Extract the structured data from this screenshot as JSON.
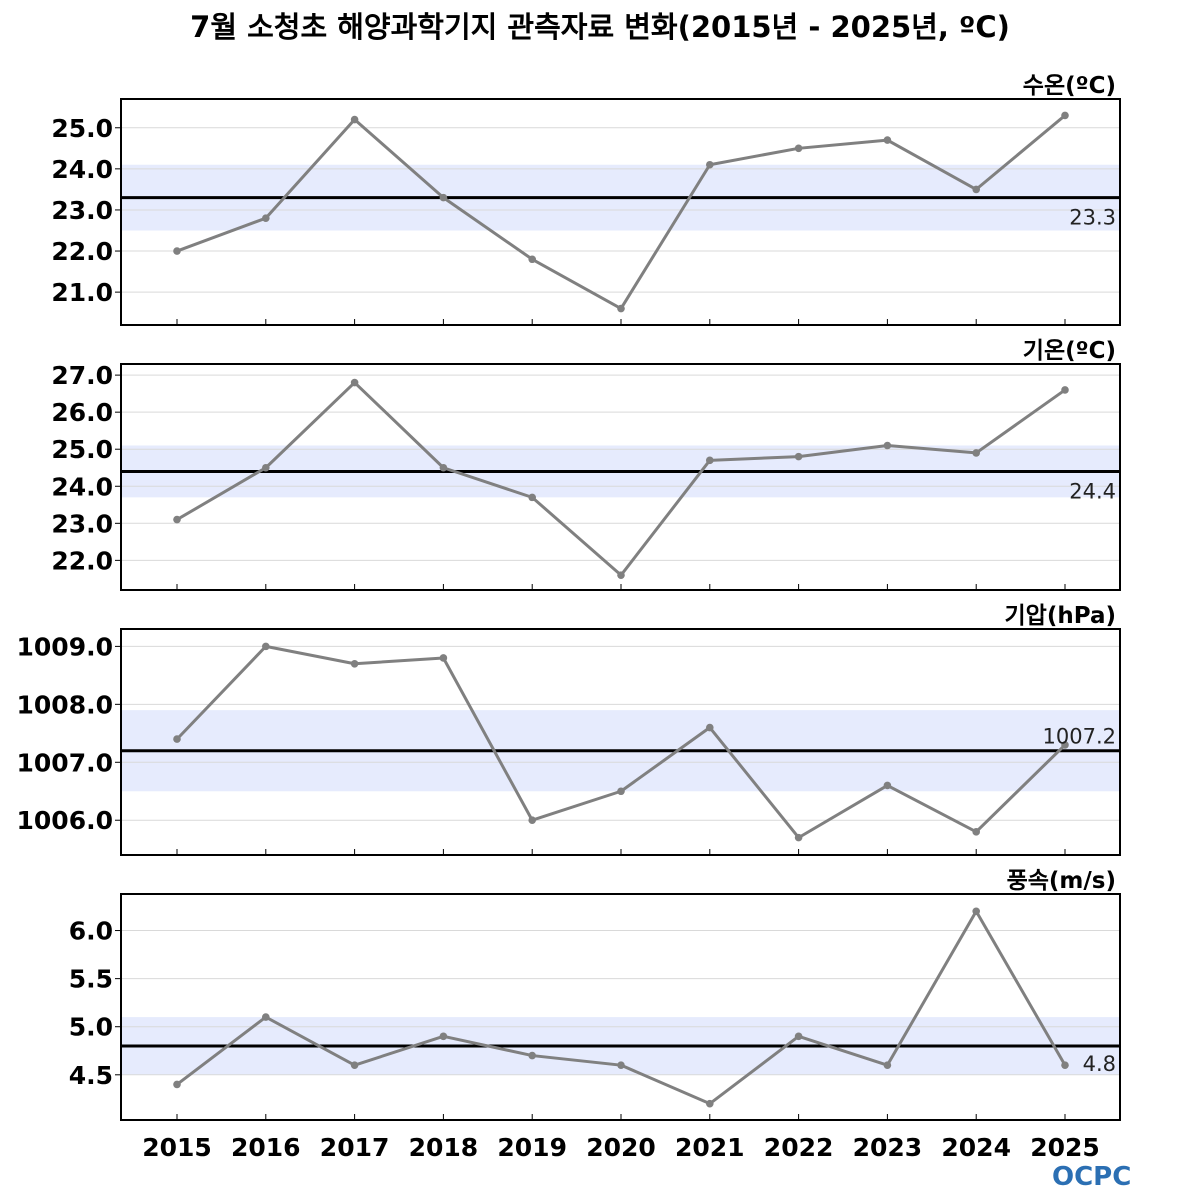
{
  "title": "7월 소청초 해양과학기지 관측자료 변화(2015년 - 2025년, ºC)",
  "logo_text": "OCPC",
  "colors": {
    "line": "#808080",
    "mean": "#000000",
    "band": "#e6ebfd",
    "grid": "#d9d9d9"
  },
  "chart_data": [
    {
      "type": "line",
      "title": "수온(ºC)",
      "x": [
        2015,
        2016,
        2017,
        2018,
        2019,
        2020,
        2021,
        2022,
        2023,
        2024,
        2025
      ],
      "values": [
        22.0,
        22.8,
        25.2,
        23.3,
        21.8,
        20.6,
        24.1,
        24.5,
        24.7,
        23.5,
        25.3
      ],
      "mean": 23.3,
      "mean_label": "23.3",
      "band": [
        22.5,
        24.1
      ],
      "ylim": [
        20.2,
        25.7
      ],
      "yticks": [
        21.0,
        22.0,
        23.0,
        24.0,
        25.0
      ],
      "ytick_labels": [
        "21.0",
        "22.0",
        "23.0",
        "24.0",
        "25.0"
      ]
    },
    {
      "type": "line",
      "title": "기온(ºC)",
      "x": [
        2015,
        2016,
        2017,
        2018,
        2019,
        2020,
        2021,
        2022,
        2023,
        2024,
        2025
      ],
      "values": [
        23.1,
        24.5,
        26.8,
        24.5,
        23.7,
        21.6,
        24.7,
        24.8,
        25.1,
        24.9,
        26.6
      ],
      "mean": 24.4,
      "mean_label": "24.4",
      "band": [
        23.7,
        25.1
      ],
      "ylim": [
        21.2,
        27.3
      ],
      "yticks": [
        22.0,
        23.0,
        24.0,
        25.0,
        26.0,
        27.0
      ],
      "ytick_labels": [
        "22.0",
        "23.0",
        "24.0",
        "25.0",
        "26.0",
        "27.0"
      ]
    },
    {
      "type": "line",
      "title": "기압(hPa)",
      "x": [
        2015,
        2016,
        2017,
        2018,
        2019,
        2020,
        2021,
        2022,
        2023,
        2024,
        2025
      ],
      "values": [
        1007.4,
        1009.0,
        1008.7,
        1008.8,
        1006.0,
        1006.5,
        1007.6,
        1005.7,
        1006.6,
        1005.8,
        1007.3
      ],
      "mean": 1007.2,
      "mean_label": "1007.2",
      "band": [
        1006.5,
        1007.9
      ],
      "ylim": [
        1005.4,
        1009.3
      ],
      "yticks": [
        1006.0,
        1007.0,
        1008.0,
        1009.0
      ],
      "ytick_labels": [
        "1006.0",
        "1007.0",
        "1008.0",
        "1009.0"
      ]
    },
    {
      "type": "line",
      "title": "풍속(m/s)",
      "x": [
        2015,
        2016,
        2017,
        2018,
        2019,
        2020,
        2021,
        2022,
        2023,
        2024,
        2025
      ],
      "values": [
        4.4,
        5.1,
        4.6,
        4.9,
        4.7,
        4.6,
        4.2,
        4.9,
        4.6,
        6.2,
        4.6
      ],
      "mean": 4.8,
      "mean_label": "4.8",
      "band": [
        4.5,
        5.1
      ],
      "ylim": [
        4.03,
        6.38
      ],
      "yticks": [
        4.5,
        5.0,
        5.5,
        6.0
      ],
      "ytick_labels": [
        "4.5",
        "5.0",
        "5.5",
        "6.0"
      ]
    }
  ],
  "x_tick_labels": [
    "2015",
    "2016",
    "2017",
    "2018",
    "2019",
    "2020",
    "2021",
    "2022",
    "2023",
    "2024",
    "2025"
  ]
}
